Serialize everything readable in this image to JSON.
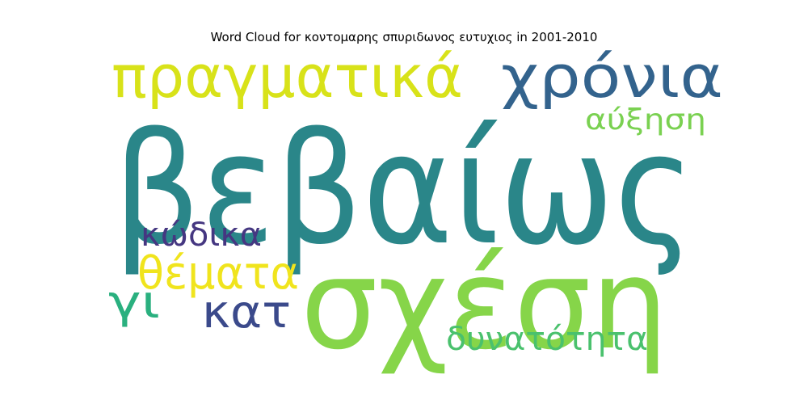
{
  "chart_data": {
    "type": "wordcloud",
    "title": "Word Cloud for κοντομαρης σπυριδωνος ευτυχιος in 2001-2010",
    "words": [
      {
        "text": "βεβαίως",
        "color": "#2a8689"
      },
      {
        "text": "σχέση",
        "color": "#86d549"
      },
      {
        "text": "πραγματικά",
        "color": "#d8e219"
      },
      {
        "text": "χρόνια",
        "color": "#33638d"
      },
      {
        "text": "αύξηση",
        "color": "#7ad151"
      },
      {
        "text": "κώδικα",
        "color": "#453781"
      },
      {
        "text": "θέματα",
        "color": "#f0e41d"
      },
      {
        "text": "κατ",
        "color": "#3b4a8b"
      },
      {
        "text": "γι",
        "color": "#2ab07f"
      },
      {
        "text": "δυνατότητα",
        "color": "#4ac16d"
      }
    ]
  }
}
